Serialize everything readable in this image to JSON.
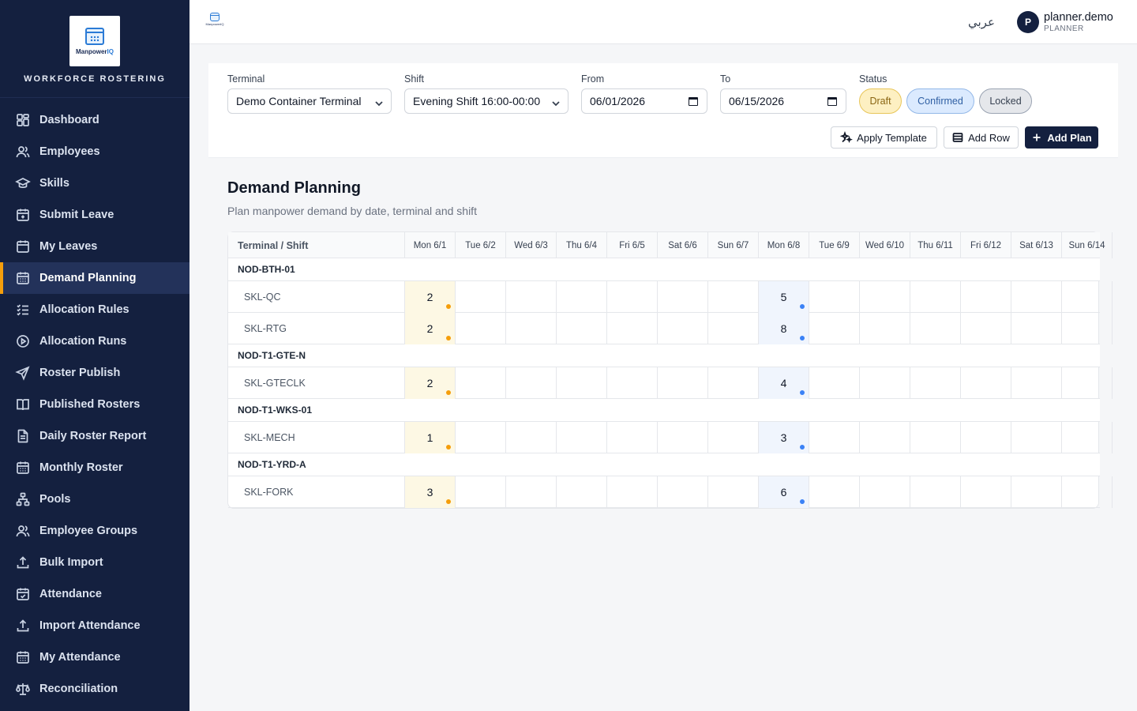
{
  "brand": {
    "logo_text_a": "Manpower",
    "logo_text_b": "IQ",
    "title": "WORKFORCE ROSTERING"
  },
  "sidebar": {
    "items": [
      {
        "label": "Dashboard",
        "icon": "dashboard-icon",
        "active": false
      },
      {
        "label": "Employees",
        "icon": "users-icon",
        "active": false
      },
      {
        "label": "Skills",
        "icon": "graduation-cap-icon",
        "active": false
      },
      {
        "label": "Submit Leave",
        "icon": "calendar-plus-icon",
        "active": false
      },
      {
        "label": "My Leaves",
        "icon": "calendar-icon",
        "active": false
      },
      {
        "label": "Demand Planning",
        "icon": "calendar-grid-icon",
        "active": true
      },
      {
        "label": "Allocation Rules",
        "icon": "list-check-icon",
        "active": false
      },
      {
        "label": "Allocation Runs",
        "icon": "play-circle-icon",
        "active": false
      },
      {
        "label": "Roster Publish",
        "icon": "send-icon",
        "active": false
      },
      {
        "label": "Published Rosters",
        "icon": "book-open-icon",
        "active": false
      },
      {
        "label": "Daily Roster Report",
        "icon": "file-text-icon",
        "active": false
      },
      {
        "label": "Monthly Roster",
        "icon": "calendar-grid-icon",
        "active": false
      },
      {
        "label": "Pools",
        "icon": "network-icon",
        "active": false
      },
      {
        "label": "Employee Groups",
        "icon": "users-icon",
        "active": false
      },
      {
        "label": "Bulk Import",
        "icon": "upload-icon",
        "active": false
      },
      {
        "label": "Attendance",
        "icon": "calendar-check-icon",
        "active": false
      },
      {
        "label": "Import Attendance",
        "icon": "upload-icon",
        "active": false
      },
      {
        "label": "My Attendance",
        "icon": "calendar-grid-icon",
        "active": false
      },
      {
        "label": "Reconciliation",
        "icon": "scale-icon",
        "active": false
      }
    ]
  },
  "topbar": {
    "mini_logo_text": "ManpowerIQ",
    "language_label": "عربي",
    "user": {
      "initial": "P",
      "name": "planner.demo",
      "role": "PLANNER"
    }
  },
  "filters": {
    "terminal": {
      "label": "Terminal",
      "value": "Demo Container Terminal"
    },
    "shift": {
      "label": "Shift",
      "value": "Evening Shift 16:00-00:00"
    },
    "from": {
      "label": "From",
      "value": "06/01/2026"
    },
    "to": {
      "label": "To",
      "value": "06/15/2026"
    },
    "status": {
      "label": "Status",
      "options": [
        "Draft",
        "Confirmed",
        "Locked"
      ]
    }
  },
  "actions": {
    "apply_template": "Apply Template",
    "add_row": "Add Row",
    "add_plan": "Add Plan"
  },
  "page": {
    "title": "Demand Planning",
    "subtitle": "Plan manpower demand by date, terminal and shift"
  },
  "colors": {
    "draft_dot": "#f59e0b",
    "confirmed_dot": "#3b82f6",
    "accent": "#14203f"
  },
  "grid": {
    "first_header": "Terminal / Shift",
    "days": [
      "Mon 6/1",
      "Tue 6/2",
      "Wed 6/3",
      "Thu 6/4",
      "Fri 6/5",
      "Sat 6/6",
      "Sun 6/7",
      "Mon 6/8",
      "Tue 6/9",
      "Wed 6/10",
      "Thu 6/11",
      "Fri 6/12",
      "Sat 6/13",
      "Sun 6/14"
    ],
    "groups": [
      {
        "node": "NOD-BTH-01",
        "skills": [
          {
            "skill": "SKL-QC",
            "values": [
              "2",
              "",
              "",
              "",
              "",
              "",
              "",
              "5",
              "",
              "",
              "",
              "",
              "",
              ""
            ],
            "status": [
              "draft",
              "",
              "",
              "",
              "",
              "",
              "",
              "confirmed",
              "",
              "",
              "",
              "",
              "",
              ""
            ]
          },
          {
            "skill": "SKL-RTG",
            "values": [
              "2",
              "",
              "",
              "",
              "",
              "",
              "",
              "8",
              "",
              "",
              "",
              "",
              "",
              ""
            ],
            "status": [
              "draft",
              "",
              "",
              "",
              "",
              "",
              "",
              "confirmed",
              "",
              "",
              "",
              "",
              "",
              ""
            ]
          }
        ]
      },
      {
        "node": "NOD-T1-GTE-N",
        "skills": [
          {
            "skill": "SKL-GTECLK",
            "values": [
              "2",
              "",
              "",
              "",
              "",
              "",
              "",
              "4",
              "",
              "",
              "",
              "",
              "",
              ""
            ],
            "status": [
              "draft",
              "",
              "",
              "",
              "",
              "",
              "",
              "confirmed",
              "",
              "",
              "",
              "",
              "",
              ""
            ]
          }
        ]
      },
      {
        "node": "NOD-T1-WKS-01",
        "skills": [
          {
            "skill": "SKL-MECH",
            "values": [
              "1",
              "",
              "",
              "",
              "",
              "",
              "",
              "3",
              "",
              "",
              "",
              "",
              "",
              ""
            ],
            "status": [
              "draft",
              "",
              "",
              "",
              "",
              "",
              "",
              "confirmed",
              "",
              "",
              "",
              "",
              "",
              ""
            ]
          }
        ]
      },
      {
        "node": "NOD-T1-YRD-A",
        "skills": [
          {
            "skill": "SKL-FORK",
            "values": [
              "3",
              "",
              "",
              "",
              "",
              "",
              "",
              "6",
              "",
              "",
              "",
              "",
              "",
              ""
            ],
            "status": [
              "draft",
              "",
              "",
              "",
              "",
              "",
              "",
              "confirmed",
              "",
              "",
              "",
              "",
              "",
              ""
            ]
          }
        ]
      }
    ]
  }
}
